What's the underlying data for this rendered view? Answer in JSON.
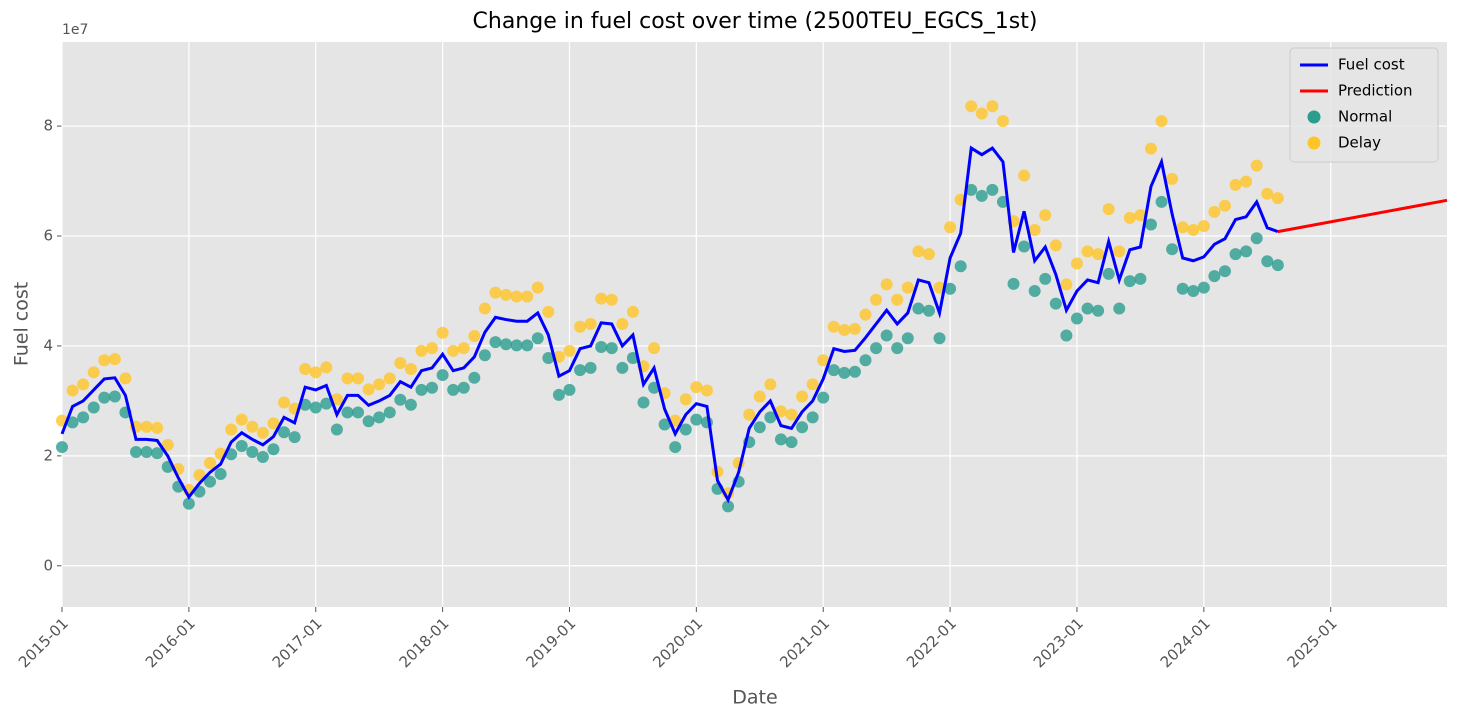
{
  "chart_data": {
    "type": "line",
    "title": "Change in fuel cost over time (2500TEU_EGCS_1st)",
    "x_label": "Date",
    "y_label": "Fuel cost",
    "y_offset_label": "1e7",
    "x": [
      "2015-01",
      "2015-02",
      "2015-03",
      "2015-04",
      "2015-05",
      "2015-06",
      "2015-07",
      "2015-08",
      "2015-09",
      "2015-10",
      "2015-11",
      "2015-12",
      "2016-01",
      "2016-02",
      "2016-03",
      "2016-04",
      "2016-05",
      "2016-06",
      "2016-07",
      "2016-08",
      "2016-09",
      "2016-10",
      "2016-11",
      "2016-12",
      "2017-01",
      "2017-02",
      "2017-03",
      "2017-04",
      "2017-05",
      "2017-06",
      "2017-07",
      "2017-08",
      "2017-09",
      "2017-10",
      "2017-11",
      "2017-12",
      "2018-01",
      "2018-02",
      "2018-03",
      "2018-04",
      "2018-05",
      "2018-06",
      "2018-07",
      "2018-08",
      "2018-09",
      "2018-10",
      "2018-11",
      "2018-12",
      "2019-01",
      "2019-02",
      "2019-03",
      "2019-04",
      "2019-05",
      "2019-06",
      "2019-07",
      "2019-08",
      "2019-09",
      "2019-10",
      "2019-11",
      "2019-12",
      "2020-01",
      "2020-02",
      "2020-03",
      "2020-04",
      "2020-05",
      "2020-06",
      "2020-07",
      "2020-08",
      "2020-09",
      "2020-10",
      "2020-11",
      "2020-12",
      "2021-01",
      "2021-02",
      "2021-03",
      "2021-04",
      "2021-05",
      "2021-06",
      "2021-07",
      "2021-08",
      "2021-09",
      "2021-10",
      "2021-11",
      "2021-12",
      "2022-01",
      "2022-02",
      "2022-03",
      "2022-04",
      "2022-05",
      "2022-06",
      "2022-07",
      "2022-08",
      "2022-09",
      "2022-10",
      "2022-11",
      "2022-12",
      "2023-01",
      "2023-02",
      "2023-03",
      "2023-04",
      "2023-05",
      "2023-06",
      "2023-07",
      "2023-08",
      "2023-09",
      "2023-10",
      "2023-11",
      "2023-12",
      "2024-01",
      "2024-02",
      "2024-03",
      "2024-04",
      "2024-05",
      "2024-06",
      "2024-07",
      "2024-08"
    ],
    "series": [
      {
        "name": "Fuel cost",
        "type": "line",
        "color": "#0000ff",
        "values": [
          2.4,
          2.9,
          3.0,
          3.2,
          3.4,
          3.42,
          3.1,
          2.3,
          2.3,
          2.28,
          2.0,
          1.6,
          1.25,
          1.5,
          1.7,
          1.85,
          2.25,
          2.42,
          2.3,
          2.2,
          2.35,
          2.7,
          2.6,
          3.25,
          3.2,
          3.28,
          2.75,
          3.1,
          3.1,
          2.92,
          3.0,
          3.1,
          3.35,
          3.25,
          3.55,
          3.6,
          3.85,
          3.55,
          3.6,
          3.8,
          4.25,
          4.52,
          4.48,
          4.45,
          4.45,
          4.6,
          4.2,
          3.45,
          3.55,
          3.95,
          4.0,
          4.42,
          4.4,
          4.0,
          4.2,
          3.3,
          3.6,
          2.85,
          2.4,
          2.75,
          2.95,
          2.9,
          1.55,
          1.2,
          1.7,
          2.5,
          2.8,
          3.0,
          2.55,
          2.5,
          2.8,
          3.0,
          3.4,
          3.95,
          3.9,
          3.92,
          4.15,
          4.4,
          4.65,
          4.4,
          4.6,
          5.2,
          5.15,
          4.6,
          5.6,
          6.05,
          7.6,
          7.48,
          7.6,
          7.35,
          5.7,
          6.45,
          5.55,
          5.8,
          5.3,
          4.65,
          5.0,
          5.2,
          5.15,
          5.9,
          5.2,
          5.75,
          5.8,
          6.9,
          7.35,
          6.4,
          5.6,
          5.55,
          5.62,
          5.85,
          5.95,
          6.3,
          6.35,
          6.62,
          6.15,
          6.08
        ]
      },
      {
        "name": "Prediction",
        "type": "line",
        "color": "#ff0000",
        "x": [
          "2024-08",
          "2025-12"
        ],
        "values": [
          6.08,
          6.65
        ]
      },
      {
        "name": "Normal",
        "type": "scatter",
        "color": "#2a9d8f",
        "values": [
          2.16,
          2.61,
          2.7,
          2.88,
          3.06,
          3.08,
          2.79,
          2.07,
          2.07,
          2.05,
          1.8,
          1.44,
          1.13,
          1.35,
          1.53,
          1.67,
          2.03,
          2.18,
          2.07,
          1.98,
          2.12,
          2.43,
          2.34,
          2.93,
          2.88,
          2.95,
          2.48,
          2.79,
          2.79,
          2.63,
          2.7,
          2.79,
          3.02,
          2.93,
          3.2,
          3.24,
          3.47,
          3.2,
          3.24,
          3.42,
          3.83,
          4.07,
          4.03,
          4.01,
          4.01,
          4.14,
          3.78,
          3.11,
          3.2,
          3.56,
          3.6,
          3.98,
          3.96,
          3.6,
          3.78,
          2.97,
          3.24,
          2.57,
          2.16,
          2.48,
          2.66,
          2.61,
          1.4,
          1.08,
          1.53,
          2.25,
          2.52,
          2.7,
          2.3,
          2.25,
          2.52,
          2.7,
          3.06,
          3.56,
          3.51,
          3.53,
          3.74,
          3.96,
          4.19,
          3.96,
          4.14,
          4.68,
          4.64,
          4.14,
          5.04,
          5.45,
          6.84,
          6.73,
          6.84,
          6.62,
          5.13,
          5.81,
          5.0,
          5.22,
          4.77,
          4.19,
          4.5,
          4.68,
          4.64,
          5.31,
          4.68,
          5.18,
          5.22,
          6.21,
          6.62,
          5.76,
          5.04,
          5.0,
          5.06,
          5.27,
          5.36,
          5.67,
          5.72,
          5.96,
          5.54,
          5.47
        ]
      },
      {
        "name": "Delay",
        "type": "scatter",
        "color": "#ffc425",
        "values": [
          2.64,
          3.19,
          3.3,
          3.52,
          3.74,
          3.76,
          3.41,
          2.53,
          2.53,
          2.51,
          2.2,
          1.76,
          1.38,
          1.65,
          1.87,
          2.04,
          2.48,
          2.66,
          2.53,
          2.42,
          2.59,
          2.97,
          2.86,
          3.58,
          3.52,
          3.61,
          3.03,
          3.41,
          3.41,
          3.21,
          3.3,
          3.41,
          3.69,
          3.58,
          3.91,
          3.96,
          4.24,
          3.91,
          3.96,
          4.18,
          4.68,
          4.97,
          4.93,
          4.9,
          4.9,
          5.06,
          4.62,
          3.8,
          3.91,
          4.35,
          4.4,
          4.86,
          4.84,
          4.4,
          4.62,
          3.63,
          3.96,
          3.14,
          2.64,
          3.03,
          3.25,
          3.19,
          1.71,
          1.32,
          1.87,
          2.75,
          3.08,
          3.3,
          2.81,
          2.75,
          3.08,
          3.3,
          3.74,
          4.35,
          4.29,
          4.31,
          4.57,
          4.84,
          5.12,
          4.84,
          5.06,
          5.72,
          5.67,
          5.06,
          6.16,
          6.66,
          8.36,
          8.23,
          8.36,
          8.09,
          6.27,
          7.1,
          6.11,
          6.38,
          5.83,
          5.12,
          5.5,
          5.72,
          5.67,
          6.49,
          5.72,
          6.33,
          6.38,
          7.59,
          8.09,
          7.04,
          6.16,
          6.11,
          6.18,
          6.44,
          6.55,
          6.93,
          6.99,
          7.28,
          6.77,
          6.69
        ]
      }
    ],
    "xlim": [
      "2015-01",
      "2025-12"
    ],
    "xticks": [
      "2015-01",
      "2016-01",
      "2017-01",
      "2018-01",
      "2019-01",
      "2020-01",
      "2021-01",
      "2022-01",
      "2023-01",
      "2024-01",
      "2025-01"
    ],
    "ylim": [
      -0.75,
      9.53
    ],
    "yticks": [
      0,
      2,
      4,
      6,
      8
    ],
    "grid": true,
    "legend": "upper right"
  }
}
